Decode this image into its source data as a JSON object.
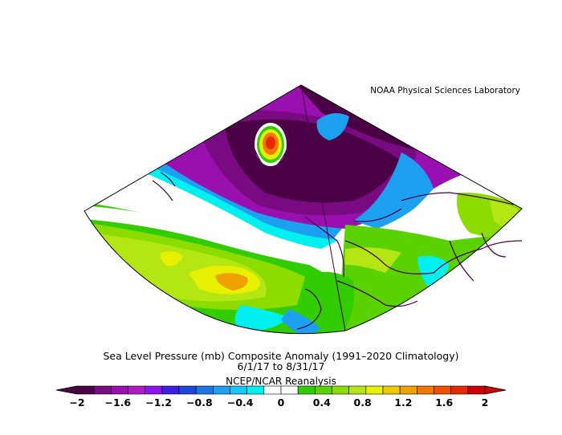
{
  "credit": "NOAA Physical Sciences Laboratory",
  "title_line1": "Sea Level Pressure (mb) Composite Anomaly (1991–2020 Climatology)",
  "title_line2": "6/1/17  to 8/31/17",
  "title_line3": "NCEP/NCAR Reanalysis",
  "colorbar": {
    "tick_labels": [
      "−2",
      "−1.6",
      "−1.2",
      "−0.8",
      "−0.4",
      "0",
      "0.4",
      "0.8",
      "1.2",
      "1.6",
      "2"
    ],
    "colors": [
      "#4b0046",
      "#7a0a82",
      "#9a0fb0",
      "#b419c8",
      "#8b14ee",
      "#3c1ee6",
      "#1e46dc",
      "#1a78e6",
      "#1ea0f0",
      "#14c8fa",
      "#00f0f0",
      "#ffffff",
      "#ffffff",
      "#32cd00",
      "#5ad200",
      "#8cdc00",
      "#b4e614",
      "#e6f000",
      "#f0c800",
      "#f0a000",
      "#f07800",
      "#f05000",
      "#e62800",
      "#cc0000"
    ],
    "vmin": -2,
    "vmax": 2
  }
}
